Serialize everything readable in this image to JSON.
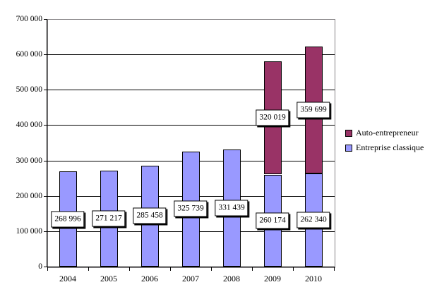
{
  "chart_data": {
    "type": "bar",
    "stacked": true,
    "title": "",
    "xlabel": "",
    "ylabel": "",
    "categories": [
      "2004",
      "2005",
      "2006",
      "2007",
      "2008",
      "2009",
      "2010"
    ],
    "series": [
      {
        "name": "Entreprise classique",
        "color": "#9999FF",
        "values": [
          268996,
          271217,
          285458,
          325739,
          331439,
          260174,
          262340
        ],
        "labels": [
          "268 996",
          "271 217",
          "285 458",
          "325 739",
          "331 439",
          "260 174",
          "262 340"
        ]
      },
      {
        "name": "Auto-entrepreneur",
        "color": "#993366",
        "values": [
          0,
          0,
          0,
          0,
          0,
          320019,
          359699
        ],
        "labels": [
          "",
          "",
          "",
          "",
          "",
          "320 019",
          "359 699"
        ]
      }
    ],
    "ylim": [
      0,
      700000
    ],
    "ytick_step": 100000,
    "ytick_labels": [
      "0",
      "100 000",
      "200 000",
      "300 000",
      "400 000",
      "500 000",
      "600 000",
      "700 000"
    ],
    "grid": true,
    "legend_position": "right",
    "legend": [
      {
        "label": "Auto-entrepreneur",
        "color": "#993366"
      },
      {
        "label": "Entreprise classique",
        "color": "#9999FF"
      }
    ],
    "colors": {
      "plot_border": "#848284",
      "gridline": "#000000",
      "axis": "#000000",
      "label_box_bg": "#FFFFFF",
      "label_box_border": "#000000",
      "label_box_shadow": "#000000"
    }
  }
}
